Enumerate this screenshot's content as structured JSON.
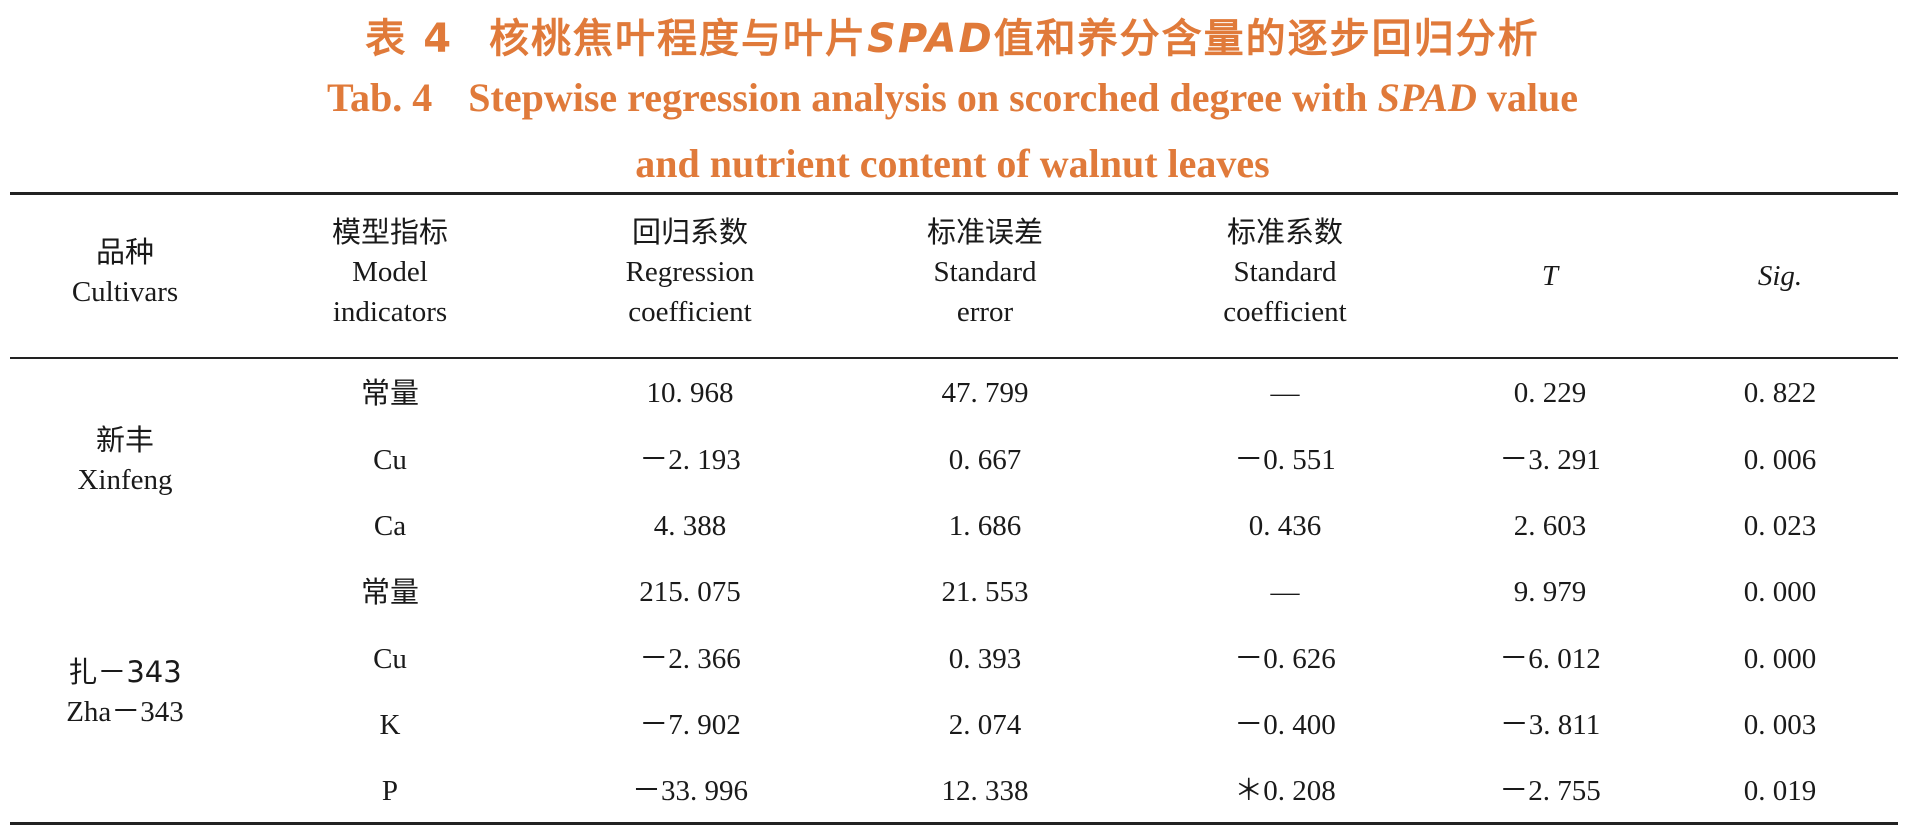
{
  "title": {
    "cn_prefix": "表 4",
    "cn_text": "核桃焦叶程度与叶片",
    "cn_spad": "SPAD",
    "cn_suffix": "值和养分含量的逐步回归分析",
    "en_prefix": "Tab. 4",
    "en_line1_text": "Stepwise regression analysis on scorched degree with",
    "en_spad": "SPAD",
    "en_line1_suffix": "value",
    "en_line2": "and nutrient content of walnut leaves"
  },
  "table": {
    "headers": [
      {
        "cn": "品种",
        "en1": "Cultivars",
        "en2": ""
      },
      {
        "cn": "模型指标",
        "en1": "Model",
        "en2": "indicators"
      },
      {
        "cn": "回归系数",
        "en1": "Regression",
        "en2": "coefficient"
      },
      {
        "cn": "标准误差",
        "en1": "Standard",
        "en2": "error"
      },
      {
        "cn": "标准系数",
        "en1": "Standard",
        "en2": "coefficient"
      },
      {
        "cn": "",
        "en1": "T",
        "en2": ""
      },
      {
        "cn": "",
        "en1": "Sig.",
        "en2": ""
      }
    ],
    "groups": [
      {
        "cultivar_cn": "新丰",
        "cultivar_en": "Xinfeng",
        "rows": [
          {
            "indicator": "常量",
            "coef": "10. 968",
            "se": "47. 799",
            "std": "—",
            "t": "0. 229",
            "sig": "0. 822"
          },
          {
            "indicator": "Cu",
            "coef": "－2. 193",
            "se": "0. 667",
            "std": "－0. 551",
            "t": "－3. 291",
            "sig": "0. 006"
          },
          {
            "indicator": "Ca",
            "coef": "4. 388",
            "se": "1. 686",
            "std": "0. 436",
            "t": "2. 603",
            "sig": "0. 023"
          }
        ]
      },
      {
        "cultivar_cn": "扎－343",
        "cultivar_en": "Zha－343",
        "rows": [
          {
            "indicator": "常量",
            "coef": "215. 075",
            "se": "21. 553",
            "std": "—",
            "t": "9. 979",
            "sig": "0. 000"
          },
          {
            "indicator": "Cu",
            "coef": "－2. 366",
            "se": "0. 393",
            "std": "－0. 626",
            "t": "－6. 012",
            "sig": "0. 000"
          },
          {
            "indicator": "K",
            "coef": "－7. 902",
            "se": "2. 074",
            "std": "－0. 400",
            "t": "－3. 811",
            "sig": "0. 003"
          },
          {
            "indicator": "P",
            "coef": "－33. 996",
            "se": "12. 338",
            "std": "＊0. 208",
            "t": "－2. 755",
            "sig": "0. 019"
          }
        ]
      }
    ]
  }
}
